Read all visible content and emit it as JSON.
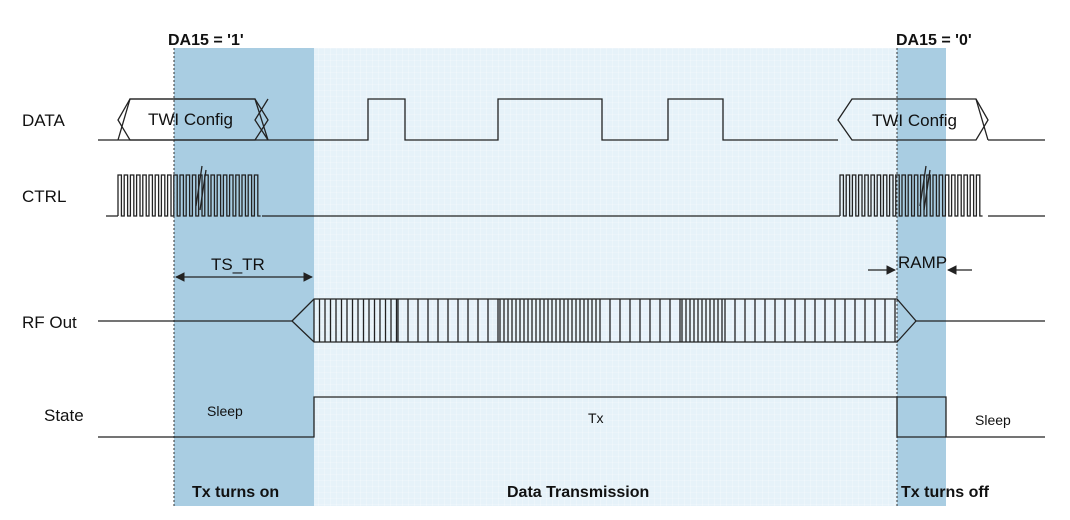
{
  "markers": {
    "start": "DA15 = '1'",
    "end": "DA15 = '0'"
  },
  "signals": {
    "data": "DATA",
    "ctrl": "CTRL",
    "rf": "RF Out",
    "state": "State"
  },
  "data_boxes": {
    "left": "TWI Config",
    "right": "TWI Config"
  },
  "timing": {
    "ts_tr": "TS_TR",
    "ramp": "RAMP"
  },
  "states": {
    "sleep_left": "Sleep",
    "tx": "Tx",
    "sleep_right": "Sleep"
  },
  "phases": {
    "on": "Tx turns on",
    "data": "Data Transmission",
    "off": "Tx turns off"
  },
  "colors": {
    "phase_dark": "#a9cde2",
    "phase_light": "#e6f2f9",
    "line": "#222222"
  }
}
